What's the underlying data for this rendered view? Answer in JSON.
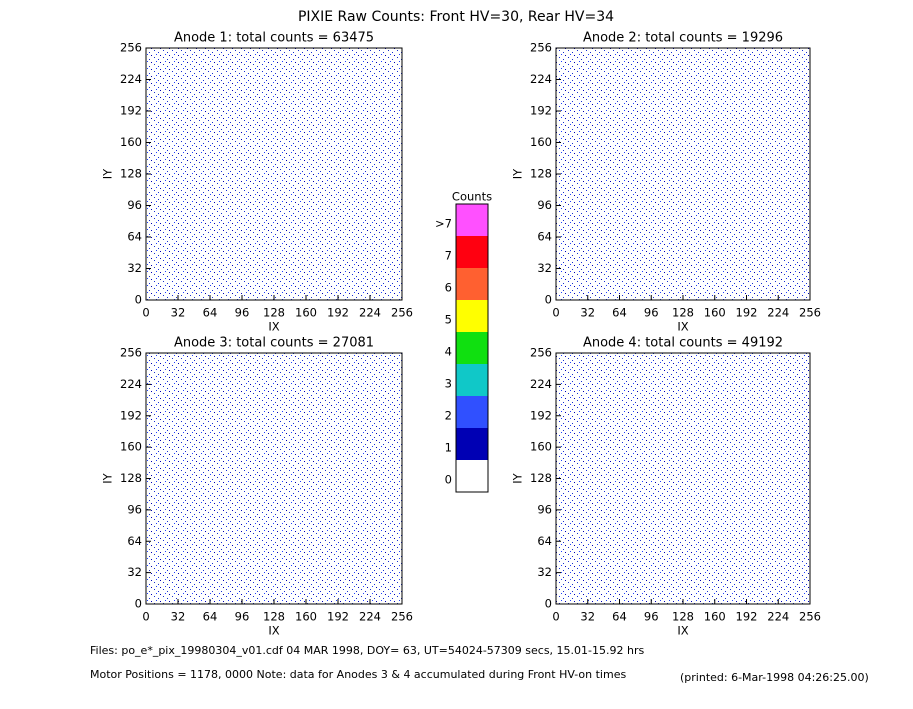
{
  "title": "PIXIE Raw Counts:  Front HV=30, Rear HV=34",
  "chart_data": [
    {
      "type": "heatmap",
      "title": "Anode 1: total counts = 63475",
      "xlabel": "IX",
      "ylabel": "IY",
      "xlim": [
        0,
        256
      ],
      "ylim": [
        0,
        256
      ],
      "xticks": [
        0,
        32,
        64,
        96,
        128,
        160,
        192,
        224,
        256
      ],
      "yticks": [
        0,
        32,
        64,
        96,
        128,
        160,
        192,
        224,
        256
      ]
    },
    {
      "type": "heatmap",
      "title": "Anode 2: total counts = 19296",
      "xlabel": "IX",
      "ylabel": "IY",
      "xlim": [
        0,
        256
      ],
      "ylim": [
        0,
        256
      ],
      "xticks": [
        0,
        32,
        64,
        96,
        128,
        160,
        192,
        224,
        256
      ],
      "yticks": [
        0,
        32,
        64,
        96,
        128,
        160,
        192,
        224,
        256
      ]
    },
    {
      "type": "heatmap",
      "title": "Anode 3: total counts = 27081",
      "xlabel": "IX",
      "ylabel": "IY",
      "xlim": [
        0,
        256
      ],
      "ylim": [
        0,
        256
      ],
      "xticks": [
        0,
        32,
        64,
        96,
        128,
        160,
        192,
        224,
        256
      ],
      "yticks": [
        0,
        32,
        64,
        96,
        128,
        160,
        192,
        224,
        256
      ]
    },
    {
      "type": "heatmap",
      "title": "Anode 4: total counts = 49192",
      "xlabel": "IX",
      "ylabel": "IY",
      "xlim": [
        0,
        256
      ],
      "ylim": [
        0,
        256
      ],
      "xticks": [
        0,
        32,
        64,
        96,
        128,
        160,
        192,
        224,
        256
      ],
      "yticks": [
        0,
        32,
        64,
        96,
        128,
        160,
        192,
        224,
        256
      ]
    }
  ],
  "colorbar": {
    "title": "Counts",
    "ticks": [
      0,
      1,
      2,
      3,
      4,
      5,
      6,
      7,
      {
        "value": 8,
        "label": ">7"
      }
    ],
    "colors": [
      "#ffffff",
      "#0000b4",
      "#3050ff",
      "#10c8c8",
      "#10e010",
      "#ffff00",
      "#ff6030",
      "#ff0010",
      "#ff50ff"
    ]
  },
  "footer": {
    "files": "Files: po_e*_pix_19980304_v01.cdf    04 MAR 1998, DOY= 63, UT=54024-57309 secs, 15.01-15.92 hrs",
    "motor": "Motor Positions = 1178, 0000   Note: data for Anodes 3 & 4 accumulated during Front HV-on times",
    "printed": "(printed:  6-Mar-1998 04:26:25.00)"
  }
}
